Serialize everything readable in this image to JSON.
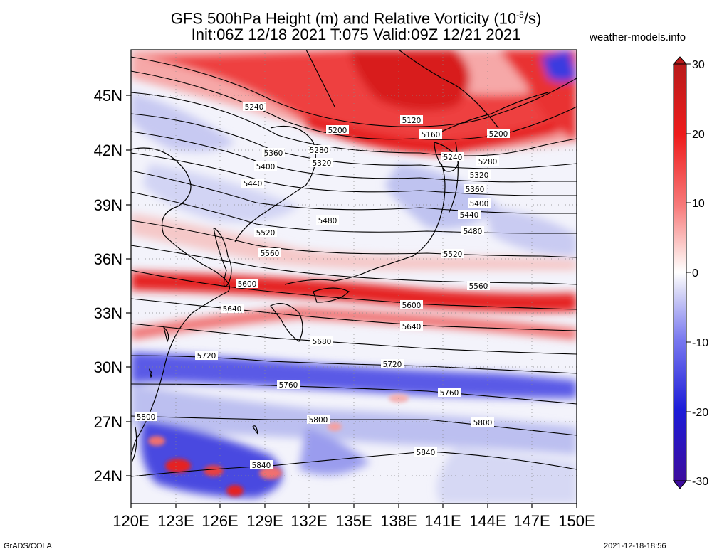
{
  "title": {
    "line1": "GFS 500hPa Height (m) and Relative Vorticity (10",
    "line1_exp": "-5",
    "line1_tail": "/s)",
    "line2": "Init:06Z 12/18 2021 T:075 Valid:09Z 12/21 2021"
  },
  "site": "weather-models.info",
  "footer": {
    "left": "GrADS/COLA",
    "right": "2021-12-18-18:56"
  },
  "axes": {
    "lat_labels": [
      "45N",
      "42N",
      "39N",
      "36N",
      "33N",
      "30N",
      "27N",
      "24N"
    ],
    "lon_labels": [
      "120E",
      "123E",
      "126E",
      "129E",
      "132E",
      "135E",
      "138E",
      "141E",
      "144E",
      "147E",
      "150E"
    ]
  },
  "colorbar": {
    "tick_labels": [
      "30",
      "20",
      "10",
      "0",
      "-10",
      "-20",
      "-30"
    ],
    "colors": [
      "#b81b1b",
      "#ee1c1c",
      "#f77a7a",
      "#fde0de",
      "#ffffff",
      "#dcdcf6",
      "#7a7af0",
      "#1c1cd8",
      "#3d0c9e"
    ]
  },
  "contour_labels": [
    "5240",
    "5200",
    "5120",
    "5160",
    "5200",
    "5280",
    "5360",
    "5320",
    "5240",
    "5280",
    "5400",
    "5320",
    "5440",
    "5360",
    "5400",
    "5480",
    "5440",
    "5520",
    "5480",
    "5560",
    "5520",
    "5600",
    "5560",
    "5640",
    "5600",
    "5640",
    "5680",
    "5720",
    "5720",
    "5760",
    "5760",
    "5800",
    "5800",
    "5800",
    "5840",
    "5840"
  ]
}
